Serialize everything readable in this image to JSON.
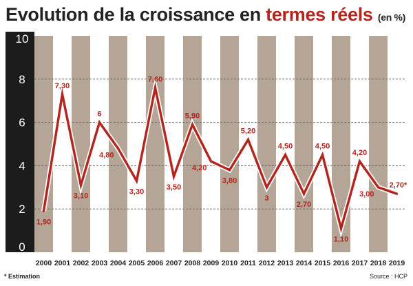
{
  "title": {
    "prefix": "Evolution de la croissance en ",
    "highlight": "termes réels",
    "unit": "(en %)"
  },
  "footnote": "* Estimation",
  "source": "Source : HCP",
  "colors": {
    "line": "#b3261e",
    "band_dark": "#b4a596",
    "band_light": "#ffffff",
    "axis_panel": "#1c1c1c",
    "grid": "#6e6e6e"
  },
  "chart_data": {
    "type": "line",
    "x": [
      "2000",
      "2001",
      "2002",
      "2003",
      "2004",
      "2005",
      "2006",
      "2007",
      "2008",
      "2009",
      "2010",
      "2011",
      "2012",
      "2013",
      "2014",
      "2015",
      "2016",
      "2017",
      "2018",
      "2019"
    ],
    "series": [
      {
        "values": [
          1.9,
          7.3,
          3.1,
          6,
          4.8,
          3.3,
          7.6,
          3.5,
          5.9,
          4.2,
          3.8,
          5.2,
          3,
          4.5,
          2.7,
          4.5,
          1.1,
          4.2,
          3.0,
          2.7
        ],
        "labels": [
          "1,90",
          "7,30",
          "3,10",
          "6",
          "4,80",
          "3,30",
          "7,60",
          "3,50",
          "5,90",
          "4,20",
          "3,80",
          "5,20",
          "3",
          "4,50",
          "2,70",
          "4,50",
          "1,10",
          "4,20",
          "3,00",
          "2,70*"
        ]
      }
    ],
    "ylim": [
      0,
      10
    ],
    "yticks": [
      0,
      2,
      4,
      6,
      8,
      10
    ],
    "grid": true,
    "legend": "none"
  }
}
